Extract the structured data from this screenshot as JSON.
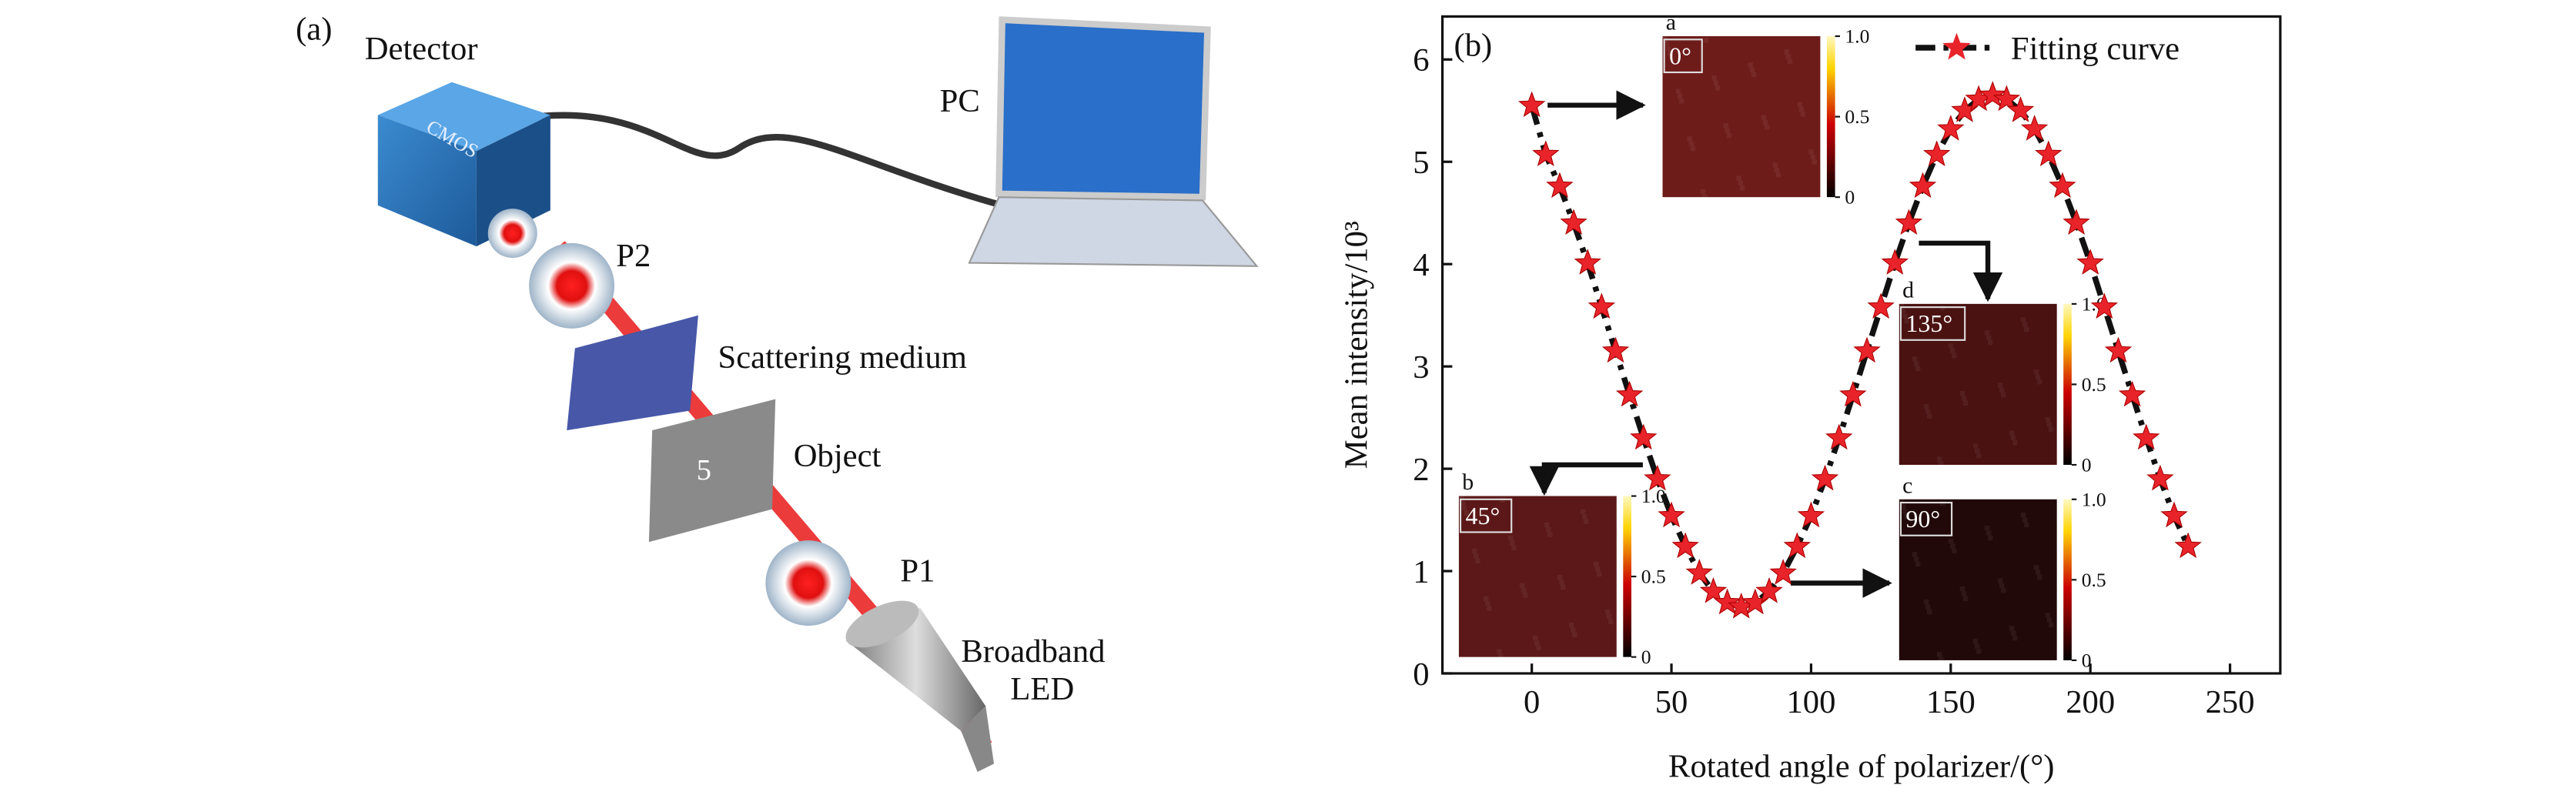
{
  "panel_a": {
    "label": "(a)",
    "detector": "Detector",
    "cmos": "CMOS",
    "pc": "PC",
    "p2": "P2",
    "medium": "Scattering medium",
    "object_mark": "5",
    "object": "Object",
    "p1": "P1",
    "led_line1": "Broadband",
    "led_line2": "LED"
  },
  "chart_data": {
    "type": "line",
    "panel_label": "(b)",
    "x_label": "Rotated angle of polarizer/(°)",
    "y_label": "Mean intensity/10³",
    "x": [
      0,
      5,
      10,
      15,
      20,
      25,
      30,
      35,
      40,
      45,
      50,
      55,
      60,
      65,
      70,
      75,
      80,
      85,
      90,
      95,
      100,
      105,
      110,
      115,
      120,
      125,
      130,
      135,
      140,
      145,
      150,
      155,
      160,
      165,
      170,
      175,
      180,
      185,
      190,
      195,
      200,
      205,
      210,
      215,
      220,
      225,
      230,
      235
    ],
    "series": [
      {
        "name": "Fitting curve",
        "color": "#e8242a",
        "values": [
          5.55,
          5.07,
          4.76,
          4.4,
          4.01,
          3.58,
          3.15,
          2.72,
          2.3,
          1.9,
          1.54,
          1.24,
          0.98,
          0.8,
          0.69,
          0.65,
          0.69,
          0.8,
          0.98,
          1.24,
          1.54,
          1.9,
          2.3,
          2.72,
          3.15,
          3.58,
          4.01,
          4.4,
          4.76,
          5.07,
          5.32,
          5.5,
          5.61,
          5.65,
          5.61,
          5.5,
          5.32,
          5.07,
          4.76,
          4.4,
          4.01,
          3.58,
          3.15,
          2.72,
          2.3,
          1.9,
          1.54,
          1.24
        ]
      }
    ],
    "xlim": [
      -32,
      268
    ],
    "xticks": [
      0,
      50,
      100,
      150,
      200,
      250
    ],
    "ylim": [
      0,
      6.42
    ],
    "yticks": [
      0,
      1,
      2,
      3,
      4,
      5,
      6
    ],
    "legend": "upper right",
    "insets": [
      {
        "letter": "a",
        "angle": "0°",
        "color": "#6e1c1a",
        "colorbar_ticks": [
          0,
          0.5,
          {
            "value": 1,
            "label": "1.0"
          }
        ]
      },
      {
        "letter": "b",
        "angle": "45°",
        "color": "#5c1818",
        "colorbar_ticks": [
          0,
          0.5,
          {
            "value": 1,
            "label": "1.0"
          }
        ]
      },
      {
        "letter": "c",
        "angle": "90°",
        "color": "#220909",
        "colorbar_ticks": [
          0,
          0.5,
          {
            "value": 1,
            "label": "1.0"
          }
        ]
      },
      {
        "letter": "d",
        "angle": "135°",
        "color": "#4a1211",
        "colorbar_ticks": [
          0,
          0.5,
          {
            "value": 1,
            "label": "1.0"
          }
        ]
      }
    ]
  }
}
